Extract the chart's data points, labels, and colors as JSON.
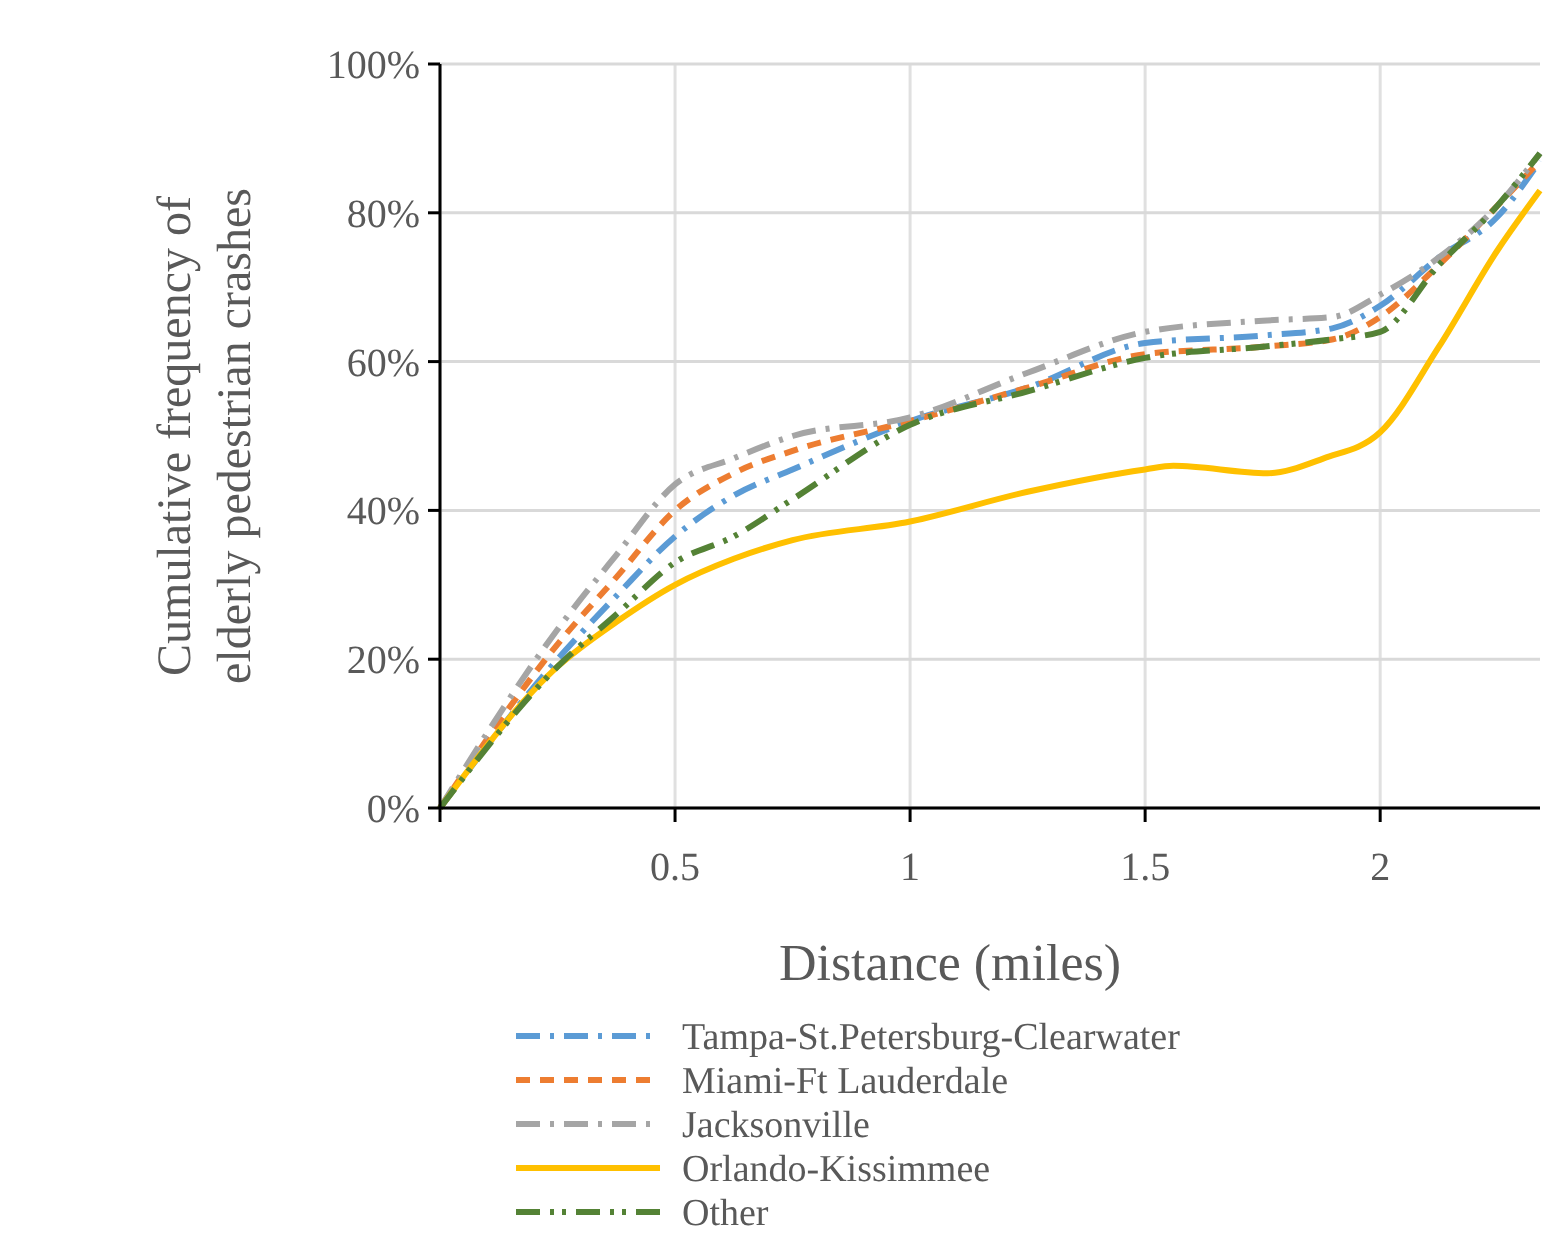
{
  "chart_data": {
    "type": "line",
    "xlabel": "Distance (miles)",
    "ylabel": "Cumulative frequency of elderly pedestrian crashes",
    "x": [
      0,
      0.25,
      0.375,
      0.5,
      0.625,
      0.75,
      1,
      1.25,
      1.5,
      1.75,
      1.9,
      2,
      2.125,
      2.25,
      2.34
    ],
    "series": [
      {
        "name": "Tampa-St.Petersburg-Clearwater",
        "color": "#5b9bd5",
        "line_style": "dashdot",
        "values": [
          0,
          20,
          28.5,
          36.5,
          42,
          45.5,
          52,
          56.5,
          62.5,
          63.5,
          64.5,
          67.5,
          74,
          79.5,
          87
        ]
      },
      {
        "name": "Miami-Ft Lauderdale",
        "color": "#ed7d31",
        "line_style": "dashed",
        "values": [
          0,
          22,
          31,
          40,
          45,
          48,
          52,
          56.5,
          61,
          62,
          63,
          66,
          73,
          81,
          87
        ]
      },
      {
        "name": "Jacksonville",
        "color": "#a5a5a5",
        "line_style": "dashdot",
        "values": [
          0,
          24,
          34,
          43.5,
          47,
          50,
          52.5,
          58.5,
          64,
          65.5,
          66,
          69,
          74,
          81,
          88
        ]
      },
      {
        "name": "Orlando-Kissimmee",
        "color": "#ffc000",
        "line_style": "solid",
        "x": [
          0,
          0.25,
          0.375,
          0.5,
          0.625,
          0.75,
          1,
          1.25,
          1.5,
          1.56,
          1.76,
          1.88,
          2,
          2.125,
          2.25,
          2.34
        ],
        "values": [
          0,
          19,
          25,
          30,
          33.5,
          36,
          38.5,
          42.5,
          45.5,
          46,
          45,
          47,
          50.5,
          62,
          75,
          83
        ]
      },
      {
        "name": "Other",
        "color": "#548235",
        "line_style": "dashdotdot",
        "values": [
          0,
          19,
          26,
          33,
          36.5,
          41.5,
          51.5,
          56,
          60.5,
          62,
          63,
          64,
          73,
          81,
          88
        ]
      }
    ],
    "xlim": [
      0,
      2.34
    ],
    "xticks": [
      {
        "value": 0,
        "label": null
      },
      0.5,
      1,
      1.5,
      2
    ],
    "ylim": [
      0,
      100
    ],
    "yticks": [
      {
        "value": 0,
        "label": "0%"
      },
      {
        "value": 20,
        "label": "20%"
      },
      {
        "value": 40,
        "label": "40%"
      },
      {
        "value": 60,
        "label": "60%"
      },
      {
        "value": 80,
        "label": "80%"
      },
      {
        "value": 100,
        "label": "100%"
      }
    ],
    "grid": true,
    "legend": "bottom"
  }
}
